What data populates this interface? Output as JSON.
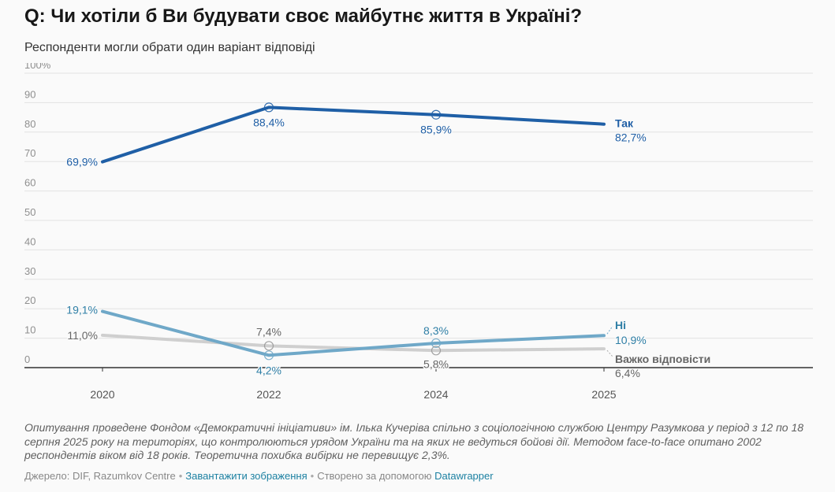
{
  "title": "Q: Чи хотіли б Ви будувати своє майбутнє життя в Україні?",
  "subtitle": "Респонденти могли обрати один варіант відповіді",
  "notes": "Опитування проведене Фондом «Демократичні ініціативи» ім. Ілька Кучеріва спільно з соціологічною службою Центру Разумкова у період з 12 по 18 серпня 2025 року на територіях, що контролюються урядом України та на яких не ведуться бойові дії. Методом face-to-face опитано 2002 респондентів віком від 18 років. Теоретична похибка вибірки не перевищує 2,3%.",
  "footer": {
    "source": "Джерело: DIF, Razumkov Centre",
    "download": "Завантажити зображення",
    "created": "Створено за допомогою",
    "tool": "Datawrapper",
    "sep": "•"
  },
  "chart_data": {
    "type": "line",
    "x": [
      "2020",
      "2022",
      "2024",
      "2025"
    ],
    "ylim": [
      0,
      100
    ],
    "yticks": [
      "0",
      "10",
      "20",
      "30",
      "40",
      "50",
      "60",
      "70",
      "80",
      "90",
      "100%"
    ],
    "grid": true,
    "series": [
      {
        "name": "Так",
        "color": "#1f5fa6",
        "values": [
          69.9,
          88.4,
          85.9,
          82.7
        ],
        "labels": [
          "69,9%",
          "88,4%",
          "85,9%",
          "82,7%"
        ]
      },
      {
        "name": "Ні",
        "color": "#6fa8c8",
        "values": [
          19.1,
          4.2,
          8.3,
          10.9
        ],
        "labels": [
          "19,1%",
          "4,2%",
          "8,3%",
          "10,9%"
        ]
      },
      {
        "name": "Важко відповісти",
        "color": "#cfcfcf",
        "label_color": "#666666",
        "values": [
          11.0,
          7.4,
          5.8,
          6.4
        ],
        "labels": [
          "11,0%",
          "7,4%",
          "5,8%",
          "6,4%"
        ]
      }
    ]
  }
}
